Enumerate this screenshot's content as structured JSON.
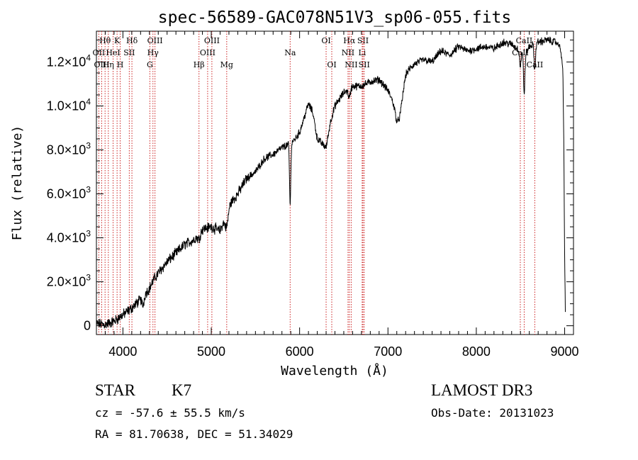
{
  "chart_data": {
    "type": "line",
    "title": "spec-56589-GAC078N51V3_sp06-055.fits",
    "xlabel": "Wavelength (Å)",
    "ylabel": "Flux (relative)",
    "xlim": [
      3700,
      9100
    ],
    "ylim": [
      -400,
      13400
    ],
    "x_ticks": [
      {
        "value": 4000,
        "label": "4000"
      },
      {
        "value": 5000,
        "label": "5000"
      },
      {
        "value": 6000,
        "label": "6000"
      },
      {
        "value": 7000,
        "label": "7000"
      },
      {
        "value": 8000,
        "label": "8000"
      },
      {
        "value": 9000,
        "label": "9000"
      }
    ],
    "y_ticks": [
      {
        "value": 0,
        "mant": "0",
        "exp": ""
      },
      {
        "value": 2000,
        "mant": "2.0×10",
        "exp": "3"
      },
      {
        "value": 4000,
        "mant": "4.0×10",
        "exp": "3"
      },
      {
        "value": 6000,
        "mant": "6.0×10",
        "exp": "3"
      },
      {
        "value": 8000,
        "mant": "8.0×10",
        "exp": "3"
      },
      {
        "value": 10000,
        "mant": "1.0×10",
        "exp": "4"
      },
      {
        "value": 12000,
        "mant": "1.2×10",
        "exp": "4"
      }
    ],
    "spectrum_knots": [
      [
        3700,
        100
      ],
      [
        3800,
        50
      ],
      [
        3900,
        200
      ],
      [
        4000,
        500
      ],
      [
        4100,
        800
      ],
      [
        4200,
        1200
      ],
      [
        4300,
        1700
      ],
      [
        4350,
        2100
      ],
      [
        4400,
        2400
      ],
      [
        4500,
        2900
      ],
      [
        4600,
        3300
      ],
      [
        4700,
        3700
      ],
      [
        4800,
        3900
      ],
      [
        4900,
        4400
      ],
      [
        5000,
        4500
      ],
      [
        5100,
        4300
      ],
      [
        5200,
        5500
      ],
      [
        5300,
        6000
      ],
      [
        5400,
        6700
      ],
      [
        5500,
        7000
      ],
      [
        5600,
        7600
      ],
      [
        5700,
        7800
      ],
      [
        5800,
        8100
      ],
      [
        5900,
        8300
      ],
      [
        5950,
        8500
      ],
      [
        6000,
        8800
      ],
      [
        6100,
        10100
      ],
      [
        6150,
        9700
      ],
      [
        6200,
        8500
      ],
      [
        6300,
        8100
      ],
      [
        6350,
        9300
      ],
      [
        6400,
        10000
      ],
      [
        6500,
        10600
      ],
      [
        6600,
        10900
      ],
      [
        6700,
        10900
      ],
      [
        6800,
        11100
      ],
      [
        6900,
        11200
      ],
      [
        7000,
        10700
      ],
      [
        7100,
        9900
      ],
      [
        7200,
        11500
      ],
      [
        7300,
        11900
      ],
      [
        7400,
        12100
      ],
      [
        7500,
        12000
      ],
      [
        7600,
        12500
      ],
      [
        7700,
        12300
      ],
      [
        7800,
        12700
      ],
      [
        7900,
        12500
      ],
      [
        8000,
        12600
      ],
      [
        8100,
        12700
      ],
      [
        8200,
        12600
      ],
      [
        8300,
        12900
      ],
      [
        8400,
        12800
      ],
      [
        8500,
        12500
      ],
      [
        8550,
        12300
      ],
      [
        8600,
        12700
      ],
      [
        8700,
        12900
      ],
      [
        8800,
        13000
      ],
      [
        8900,
        12900
      ],
      [
        8950,
        12700
      ],
      [
        8980,
        11600
      ],
      [
        8990,
        8500
      ],
      [
        9000,
        3000
      ],
      [
        9010,
        0
      ]
    ],
    "absorption_dips": [
      [
        4227,
        400,
        12
      ],
      [
        4860,
        250,
        15
      ],
      [
        5175,
        700,
        18
      ],
      [
        5893,
        2800,
        7
      ],
      [
        6563,
        400,
        12
      ],
      [
        7130,
        900,
        35
      ],
      [
        8498,
        700,
        8
      ],
      [
        8542,
        1700,
        8
      ],
      [
        8662,
        1200,
        8
      ]
    ],
    "noise_amplitude": 140,
    "line_markers": [
      {
        "name": "Hθ",
        "wl": 3798,
        "row": 1
      },
      {
        "name": "OII",
        "wl": 3727,
        "row": 2
      },
      {
        "name": "OIII",
        "wl": 3760,
        "row": 3
      },
      {
        "name": "K",
        "wl": 3934,
        "row": 1
      },
      {
        "name": "HeI",
        "wl": 3889,
        "row": 2
      },
      {
        "name": "Hη",
        "wl": 3835,
        "row": 3
      },
      {
        "name": "SII",
        "wl": 4072,
        "row": 2
      },
      {
        "name": "H",
        "wl": 3969,
        "row": 3
      },
      {
        "name": "Hδ",
        "wl": 4102,
        "row": 1
      },
      {
        "name": "OIII",
        "wl": 4363,
        "row": 1
      },
      {
        "name": "Hγ",
        "wl": 4340,
        "row": 2
      },
      {
        "name": "G",
        "wl": 4305,
        "row": 3
      },
      {
        "name": "Hβ",
        "wl": 4861,
        "row": 3
      },
      {
        "name": "OIII",
        "wl": 5007,
        "row": 1
      },
      {
        "name": "OIII",
        "wl": 4959,
        "row": 2
      },
      {
        "name": "Mg",
        "wl": 5175,
        "row": 3
      },
      {
        "name": "Na",
        "wl": 5893,
        "row": 2
      },
      {
        "name": "OI",
        "wl": 6300,
        "row": 1
      },
      {
        "name": "OI",
        "wl": 6364,
        "row": 3
      },
      {
        "name": "Hα",
        "wl": 6563,
        "row": 1
      },
      {
        "name": "NII",
        "wl": 6548,
        "row": 2
      },
      {
        "name": "NII",
        "wl": 6584,
        "row": 3
      },
      {
        "name": "SII",
        "wl": 6717,
        "row": 1
      },
      {
        "name": "Li",
        "wl": 6708,
        "row": 2
      },
      {
        "name": "SII",
        "wl": 6731,
        "row": 3
      },
      {
        "name": "CaII",
        "wl": 8542,
        "row": 1
      },
      {
        "name": "CaII",
        "wl": 8498,
        "row": 2
      },
      {
        "name": "CaII",
        "wl": 8662,
        "row": 3
      }
    ]
  },
  "footer": {
    "object_type": "STAR",
    "subclass": "K7",
    "survey": "LAMOST DR3",
    "redshift_text": "cz = -57.6 ± 55.5 km/s",
    "obs_date_text": "Obs-Date: 20131023",
    "coords_text": "RA =  81.70638, DEC =  51.34029"
  },
  "colors": {
    "spectrum": "#000000",
    "marker_line": "#cc2222",
    "axis": "#000000"
  }
}
